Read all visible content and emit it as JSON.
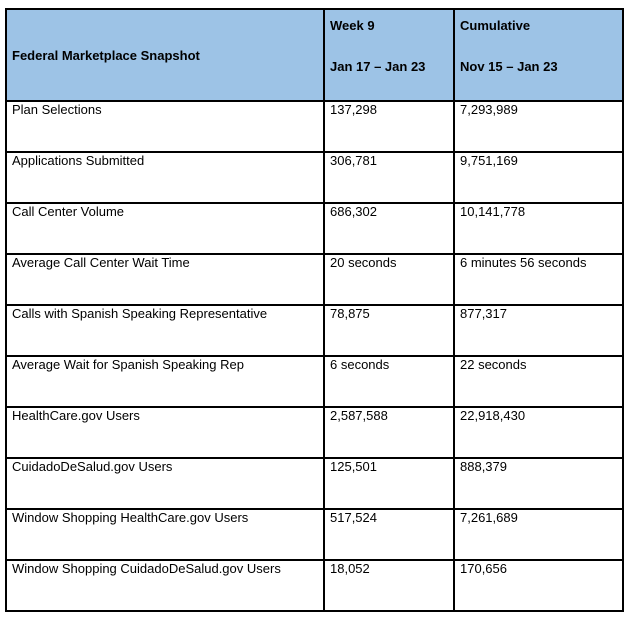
{
  "colors": {
    "header_bg": "#9dc3e6",
    "border": "#000000",
    "page_bg": "#ffffff"
  },
  "table": {
    "header": {
      "title": "Federal Marketplace Snapshot",
      "week_label": "Week 9",
      "week_range": "Jan 17 – Jan 23",
      "cumulative_label": "Cumulative",
      "cumulative_range": "Nov 15 – Jan 23"
    },
    "rows": [
      {
        "label": "Plan Selections",
        "week": "137,298",
        "cumulative": "7,293,989"
      },
      {
        "label": "Applications Submitted",
        "week": "306,781",
        "cumulative": "9,751,169"
      },
      {
        "label": "Call Center Volume",
        "week": "686,302",
        "cumulative": "10,141,778"
      },
      {
        "label": "Average Call Center Wait Time",
        "week": "20 seconds",
        "cumulative": "6 minutes 56 seconds"
      },
      {
        "label": "Calls with Spanish Speaking Representative",
        "week": "78,875",
        "cumulative": "877,317"
      },
      {
        "label": "Average Wait for Spanish Speaking Rep",
        "week": "6 seconds",
        "cumulative": "22 seconds"
      },
      {
        "label": "HealthCare.gov Users",
        "week": "2,587,588",
        "cumulative": "22,918,430"
      },
      {
        "label": "CuidadoDeSalud.gov Users",
        "week": "125,501",
        "cumulative": "888,379"
      },
      {
        "label": "Window Shopping HealthCare.gov Users",
        "week": "517,524",
        "cumulative": "7,261,689"
      },
      {
        "label": "Window Shopping CuidadoDeSalud.gov Users",
        "week": "18,052",
        "cumulative": "170,656"
      }
    ]
  }
}
